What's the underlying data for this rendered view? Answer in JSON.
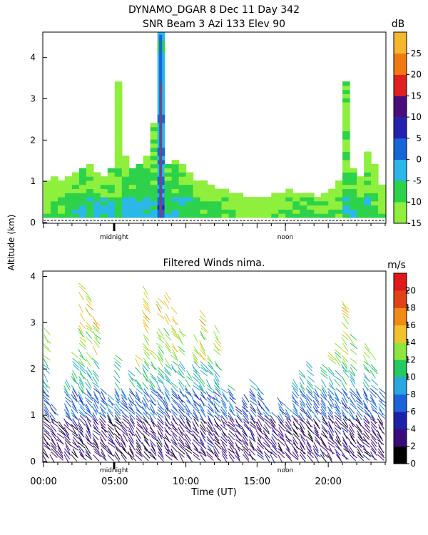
{
  "figure": {
    "title_line1": "DYNAMO_DGAR    8 Dec 11 Day 342",
    "title_line2": "SNR Beam 3 Azi 133 Elev 90",
    "shared_ylabel": "Altitude (km)",
    "xlabel": "Time (UT)",
    "marker_labels": {
      "midnight": "midnight",
      "noon": "noon"
    }
  },
  "chart_data": [
    {
      "type": "heatmap",
      "title": "SNR Beam 3 Azi 133 Elev 90",
      "ylim": [
        0,
        4.6
      ],
      "yticks": [
        0,
        1,
        2,
        3,
        4
      ],
      "xlim": [
        0,
        24
      ],
      "colorbar": {
        "unit": "dB",
        "range": [
          -15,
          30
        ],
        "ticks": [
          -15,
          -10,
          -5,
          0,
          5,
          10,
          15,
          20,
          25
        ],
        "colors": [
          "#8ef03c",
          "#2ed24a",
          "#2ab8e8",
          "#1666d8",
          "#2222b0",
          "#4a0d7c",
          "#e02020",
          "#f07a12",
          "#f5b82c"
        ]
      },
      "snr_columns": [
        {
          "t": 0.0,
          "top": 0.92,
          "v": -11
        },
        {
          "t": 0.5,
          "top": 1.05,
          "v": -8
        },
        {
          "t": 1.0,
          "top": 0.95,
          "v": -9
        },
        {
          "t": 1.5,
          "top": 1.1,
          "v": -7
        },
        {
          "t": 2.0,
          "top": 1.2,
          "v": -6
        },
        {
          "t": 2.5,
          "top": 1.3,
          "v": -5
        },
        {
          "t": 3.0,
          "top": 1.4,
          "v": -6
        },
        {
          "t": 3.5,
          "top": 1.2,
          "v": -7
        },
        {
          "t": 4.0,
          "top": 1.1,
          "v": -6
        },
        {
          "t": 4.5,
          "top": 1.3,
          "v": -5
        },
        {
          "t": 5.0,
          "top": 3.4,
          "v": -9
        },
        {
          "t": 5.5,
          "top": 1.6,
          "v": -4
        },
        {
          "t": 6.0,
          "top": 1.3,
          "v": -4
        },
        {
          "t": 6.5,
          "top": 1.4,
          "v": -5
        },
        {
          "t": 7.0,
          "top": 1.6,
          "v": -5
        },
        {
          "t": 7.5,
          "top": 2.4,
          "v": -6
        },
        {
          "t": 8.0,
          "top": 4.55,
          "v": 2
        },
        {
          "t": 8.5,
          "top": 1.4,
          "v": -5
        },
        {
          "t": 9.0,
          "top": 1.5,
          "v": -5
        },
        {
          "t": 9.5,
          "top": 1.4,
          "v": -6
        },
        {
          "t": 10.0,
          "top": 1.2,
          "v": -6
        },
        {
          "t": 10.5,
          "top": 1.0,
          "v": -7
        },
        {
          "t": 11.0,
          "top": 0.95,
          "v": -8
        },
        {
          "t": 11.5,
          "top": 0.9,
          "v": -9
        },
        {
          "t": 12.0,
          "top": 0.8,
          "v": -10
        },
        {
          "t": 12.5,
          "top": 0.8,
          "v": -10
        },
        {
          "t": 13.0,
          "top": 0.7,
          "v": -11
        },
        {
          "t": 13.5,
          "top": 0.7,
          "v": -11
        },
        {
          "t": 14.0,
          "top": 0.6,
          "v": -12
        },
        {
          "t": 14.5,
          "top": 0.6,
          "v": -12
        },
        {
          "t": 15.0,
          "top": 0.55,
          "v": -12
        },
        {
          "t": 15.5,
          "top": 0.6,
          "v": -12
        },
        {
          "t": 16.0,
          "top": 0.65,
          "v": -11
        },
        {
          "t": 16.5,
          "top": 0.7,
          "v": -10
        },
        {
          "t": 17.0,
          "top": 0.75,
          "v": -9
        },
        {
          "t": 17.5,
          "top": 0.7,
          "v": -8
        },
        {
          "t": 18.0,
          "top": 0.7,
          "v": -7
        },
        {
          "t": 18.5,
          "top": 0.65,
          "v": -8
        },
        {
          "t": 19.0,
          "top": 0.6,
          "v": -9
        },
        {
          "t": 19.5,
          "top": 0.7,
          "v": -10
        },
        {
          "t": 20.0,
          "top": 0.8,
          "v": -10
        },
        {
          "t": 20.5,
          "top": 1.0,
          "v": -9
        },
        {
          "t": 21.0,
          "top": 3.4,
          "v": -6
        },
        {
          "t": 21.5,
          "top": 1.3,
          "v": -7
        },
        {
          "t": 22.0,
          "top": 1.1,
          "v": -8
        },
        {
          "t": 22.5,
          "top": 1.7,
          "v": -7
        },
        {
          "t": 23.0,
          "top": 1.4,
          "v": -8
        },
        {
          "t": 23.5,
          "top": 0.9,
          "v": -9
        }
      ]
    },
    {
      "type": "scatter",
      "title": "Filtered Winds nima.",
      "xlabel": "Time (UT)",
      "ylabel": "Altitude (km)",
      "xlim": [
        0,
        24
      ],
      "ylim": [
        0,
        4.1
      ],
      "xticks": [
        0,
        5,
        10,
        15,
        20
      ],
      "xticklabels": [
        "00:00",
        "05:00",
        "10:00",
        "15:00",
        "20:00"
      ],
      "yticks": [
        0,
        1,
        2,
        3,
        4
      ],
      "colorbar": {
        "unit": "m/s",
        "ticks": [
          0,
          2,
          4,
          6,
          8,
          10,
          12,
          14,
          16,
          18,
          20
        ],
        "range": [
          0,
          22
        ],
        "colors": [
          "#000000",
          "#3a0a7a",
          "#1c22a8",
          "#1d62d8",
          "#2aa6e0",
          "#25c862",
          "#8ee63c",
          "#f2c22c",
          "#f08a18",
          "#e04416",
          "#e01a1a"
        ]
      },
      "wind_profile": [
        {
          "max": 1.0,
          "speed": 3
        },
        {
          "max": 1.6,
          "speed": 7
        },
        {
          "max": 2.2,
          "speed": 10
        },
        {
          "max": 3.0,
          "speed": 13
        },
        {
          "max": 4.0,
          "speed": 15
        }
      ],
      "wind_columns": [
        {
          "t": 0.0,
          "top": 2.9
        },
        {
          "t": 0.5,
          "top": 1.3
        },
        {
          "t": 1.0,
          "top": 0.9
        },
        {
          "t": 1.5,
          "top": 1.8
        },
        {
          "t": 2.0,
          "top": 2.4
        },
        {
          "t": 2.5,
          "top": 3.9
        },
        {
          "t": 3.0,
          "top": 3.7
        },
        {
          "t": 3.5,
          "top": 3.3
        },
        {
          "t": 4.0,
          "top": 1.6
        },
        {
          "t": 4.5,
          "top": 1.5
        },
        {
          "t": 5.0,
          "top": 2.3
        },
        {
          "t": 5.5,
          "top": 1.7
        },
        {
          "t": 6.0,
          "top": 2.0
        },
        {
          "t": 6.5,
          "top": 2.3
        },
        {
          "t": 7.0,
          "top": 3.8
        },
        {
          "t": 7.5,
          "top": 2.5
        },
        {
          "t": 8.0,
          "top": 3.6
        },
        {
          "t": 8.5,
          "top": 3.7
        },
        {
          "t": 9.0,
          "top": 3.5
        },
        {
          "t": 9.5,
          "top": 2.9
        },
        {
          "t": 10.0,
          "top": 2.0
        },
        {
          "t": 10.5,
          "top": 2.8
        },
        {
          "t": 11.0,
          "top": 3.3
        },
        {
          "t": 11.5,
          "top": 2.3
        },
        {
          "t": 12.0,
          "top": 3.2
        },
        {
          "t": 12.5,
          "top": 1.6
        },
        {
          "t": 13.0,
          "top": 1.7
        },
        {
          "t": 13.5,
          "top": 1.2
        },
        {
          "t": 14.0,
          "top": 1.5
        },
        {
          "t": 14.5,
          "top": 1.8
        },
        {
          "t": 15.0,
          "top": 1.7
        },
        {
          "t": 15.5,
          "top": 1.3
        },
        {
          "t": 16.0,
          "top": 1.1
        },
        {
          "t": 16.5,
          "top": 1.4
        },
        {
          "t": 17.0,
          "top": 1.2
        },
        {
          "t": 17.5,
          "top": 1.8
        },
        {
          "t": 18.0,
          "top": 2.0
        },
        {
          "t": 18.5,
          "top": 2.2
        },
        {
          "t": 19.0,
          "top": 1.7
        },
        {
          "t": 19.5,
          "top": 2.1
        },
        {
          "t": 20.0,
          "top": 2.4
        },
        {
          "t": 20.5,
          "top": 2.6
        },
        {
          "t": 21.0,
          "top": 3.5
        },
        {
          "t": 21.5,
          "top": 2.8
        },
        {
          "t": 22.0,
          "top": 1.7
        },
        {
          "t": 22.5,
          "top": 2.7
        },
        {
          "t": 23.0,
          "top": 2.4
        },
        {
          "t": 23.5,
          "top": 1.6
        }
      ]
    }
  ]
}
